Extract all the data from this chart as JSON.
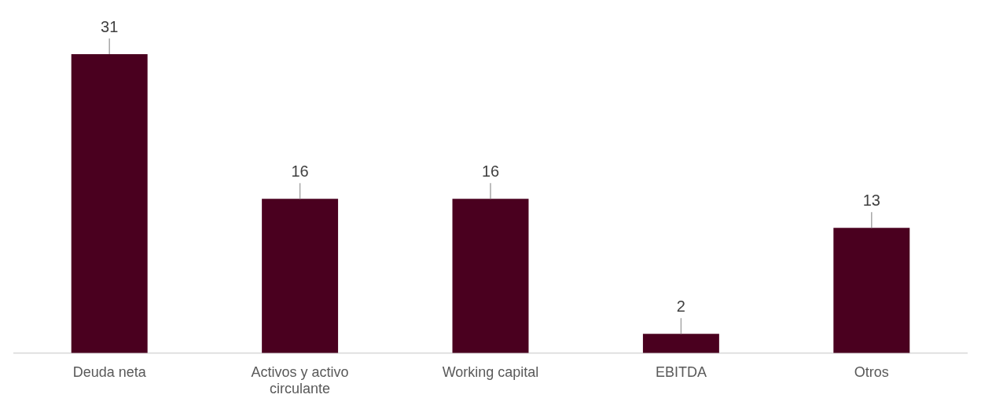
{
  "chart_data": {
    "type": "bar",
    "categories": [
      "Deuda neta",
      "Activos y activo circulante",
      "Working capital",
      "EBITDA",
      "Otros"
    ],
    "values": [
      31,
      16,
      16,
      2,
      13
    ],
    "color": "#4a001f",
    "data_labels": true,
    "grid": false,
    "legend": false,
    "tick_labels": "x"
  }
}
